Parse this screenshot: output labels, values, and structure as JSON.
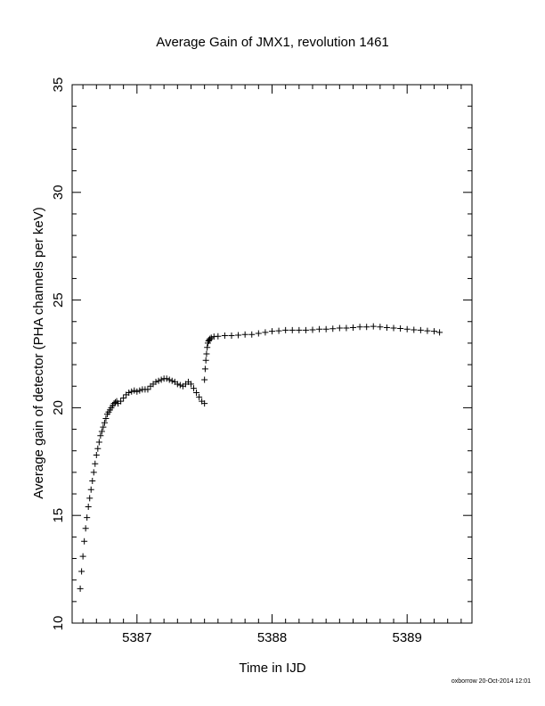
{
  "footer": {
    "stamp": "oxborrow 20-Oct-2014 12:01"
  },
  "chart_data": {
    "type": "scatter",
    "title": "Average Gain of JMX1, revolution 1461",
    "xlabel": "Time in IJD",
    "ylabel": "Average gain of detector (PHA channels per keV)",
    "xlim": [
      5386.52,
      5389.48
    ],
    "ylim": [
      10,
      35
    ],
    "x_ticks": [
      5387,
      5388,
      5389
    ],
    "y_ticks": [
      10,
      15,
      20,
      25,
      30,
      35
    ],
    "marker": "plus",
    "marker_color": "#000000",
    "grid": false,
    "series": [
      {
        "x": [
          5386.58,
          5386.59,
          5386.6,
          5386.61,
          5386.62,
          5386.63,
          5386.64,
          5386.65,
          5386.66,
          5386.67,
          5386.68,
          5386.69,
          5386.7,
          5386.71,
          5386.72,
          5386.73,
          5386.74,
          5386.75,
          5386.76,
          5386.77,
          5386.78,
          5386.79,
          5386.8,
          5386.81,
          5386.82,
          5386.83,
          5386.84,
          5386.85,
          5386.86,
          5386.88,
          5386.9,
          5386.92,
          5386.94,
          5386.96,
          5386.98,
          5387.0,
          5387.02,
          5387.04,
          5387.06,
          5387.08,
          5387.1,
          5387.12,
          5387.14,
          5387.16,
          5387.18,
          5387.2,
          5387.22,
          5387.24,
          5387.26,
          5387.28,
          5387.3,
          5387.32,
          5387.34,
          5387.36,
          5387.38,
          5387.4,
          5387.42,
          5387.44,
          5387.46,
          5387.48,
          5387.5,
          5387.5,
          5387.505,
          5387.51,
          5387.515,
          5387.52,
          5387.525,
          5387.53,
          5387.535,
          5387.54,
          5387.55,
          5387.57,
          5387.6,
          5387.65,
          5387.7,
          5387.75,
          5387.8,
          5387.85,
          5387.9,
          5387.95,
          5388.0,
          5388.05,
          5388.1,
          5388.15,
          5388.2,
          5388.25,
          5388.3,
          5388.35,
          5388.4,
          5388.45,
          5388.5,
          5388.55,
          5388.6,
          5388.65,
          5388.7,
          5388.75,
          5388.8,
          5388.85,
          5388.9,
          5388.95,
          5389.0,
          5389.05,
          5389.1,
          5389.15,
          5389.2,
          5389.24
        ],
        "y": [
          11.6,
          12.4,
          13.1,
          13.8,
          14.4,
          14.9,
          15.4,
          15.8,
          16.2,
          16.6,
          17.0,
          17.4,
          17.8,
          18.1,
          18.4,
          18.7,
          18.9,
          19.1,
          19.3,
          19.5,
          19.7,
          19.8,
          19.9,
          20.0,
          20.1,
          20.2,
          20.25,
          20.3,
          20.2,
          20.3,
          20.45,
          20.6,
          20.7,
          20.75,
          20.8,
          20.75,
          20.8,
          20.85,
          20.85,
          20.85,
          21.0,
          21.1,
          21.2,
          21.25,
          21.3,
          21.35,
          21.35,
          21.3,
          21.25,
          21.2,
          21.1,
          21.05,
          21.0,
          21.1,
          21.2,
          21.1,
          20.9,
          20.7,
          20.5,
          20.3,
          20.2,
          21.3,
          21.8,
          22.2,
          22.5,
          22.8,
          23.0,
          23.1,
          23.15,
          23.2,
          23.25,
          23.3,
          23.32,
          23.35,
          23.35,
          23.37,
          23.4,
          23.4,
          23.45,
          23.5,
          23.55,
          23.57,
          23.6,
          23.6,
          23.6,
          23.6,
          23.62,
          23.65,
          23.65,
          23.67,
          23.7,
          23.7,
          23.72,
          23.75,
          23.75,
          23.78,
          23.75,
          23.72,
          23.7,
          23.68,
          23.65,
          23.62,
          23.6,
          23.57,
          23.55,
          23.5
        ]
      }
    ]
  }
}
